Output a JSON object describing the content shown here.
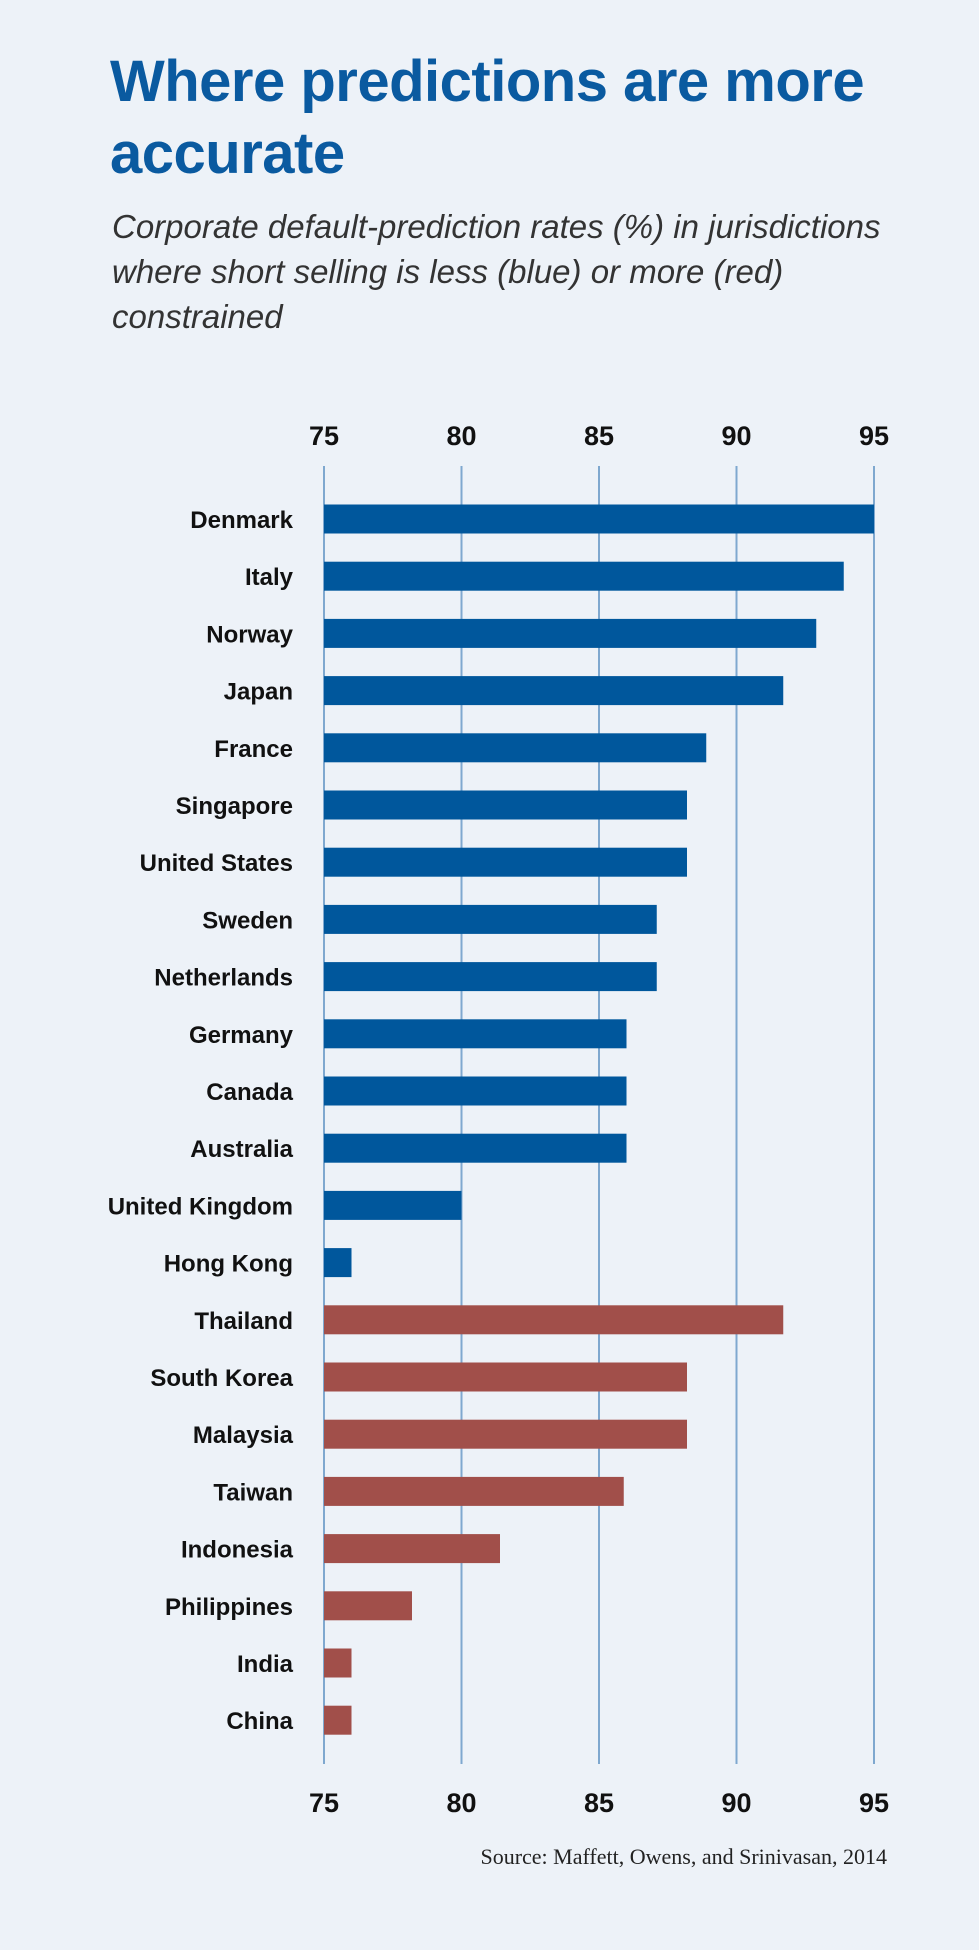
{
  "chart_data": {
    "type": "bar",
    "orientation": "horizontal",
    "title": "Where predictions are more accurate",
    "subtitle": "Corporate default-prediction rates (%) in jurisdictions where short selling is less (blue) or more (red) constrained",
    "xlim": [
      75,
      95
    ],
    "ticks": [
      "75",
      "80",
      "85",
      "90",
      "95"
    ],
    "tick_values": [
      75,
      80,
      85,
      90,
      95
    ],
    "grid": true,
    "colors": {
      "less_constrained": "#00579c",
      "more_constrained": "#a14f4a",
      "grid": "#7fa8cf"
    },
    "bars": [
      {
        "label": "Denmark",
        "value": 95.0,
        "group": "less_constrained"
      },
      {
        "label": "Italy",
        "value": 93.9,
        "group": "less_constrained"
      },
      {
        "label": "Norway",
        "value": 92.9,
        "group": "less_constrained"
      },
      {
        "label": "Japan",
        "value": 91.7,
        "group": "less_constrained"
      },
      {
        "label": "France",
        "value": 88.9,
        "group": "less_constrained"
      },
      {
        "label": "Singapore",
        "value": 88.2,
        "group": "less_constrained"
      },
      {
        "label": "United States",
        "value": 88.2,
        "group": "less_constrained"
      },
      {
        "label": "Sweden",
        "value": 87.1,
        "group": "less_constrained"
      },
      {
        "label": "Netherlands",
        "value": 87.1,
        "group": "less_constrained"
      },
      {
        "label": "Germany",
        "value": 86.0,
        "group": "less_constrained"
      },
      {
        "label": "Canada",
        "value": 86.0,
        "group": "less_constrained"
      },
      {
        "label": "Australia",
        "value": 86.0,
        "group": "less_constrained"
      },
      {
        "label": "United Kingdom",
        "value": 80.0,
        "group": "less_constrained"
      },
      {
        "label": "Hong Kong",
        "value": 76.0,
        "group": "less_constrained"
      },
      {
        "label": "Thailand",
        "value": 91.7,
        "group": "more_constrained"
      },
      {
        "label": "South Korea",
        "value": 88.2,
        "group": "more_constrained"
      },
      {
        "label": "Malaysia",
        "value": 88.2,
        "group": "more_constrained"
      },
      {
        "label": "Taiwan",
        "value": 85.9,
        "group": "more_constrained"
      },
      {
        "label": "Indonesia",
        "value": 81.4,
        "group": "more_constrained"
      },
      {
        "label": "Philippines",
        "value": 78.2,
        "group": "more_constrained"
      },
      {
        "label": "India",
        "value": 76.0,
        "group": "more_constrained"
      },
      {
        "label": "China",
        "value": 76.0,
        "group": "more_constrained"
      }
    ],
    "source": "Source: Maffett, Owens, and Srinivasan, 2014"
  }
}
